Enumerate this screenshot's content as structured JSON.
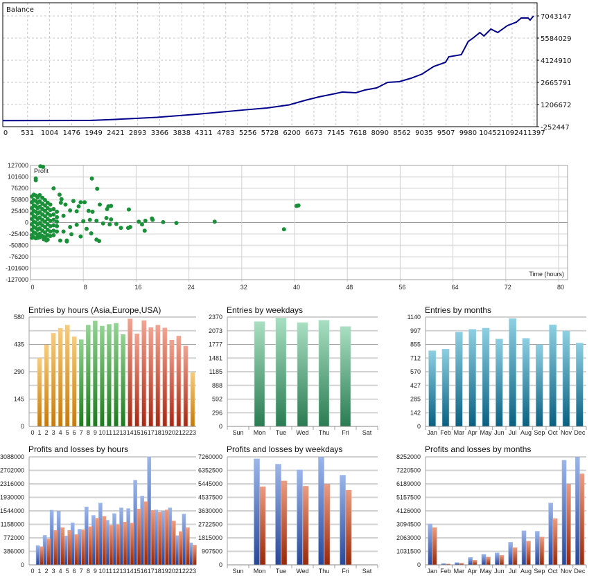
{
  "palette": {
    "line": "#00008b",
    "dot": "#1a9139",
    "asia": [
      "#f6cc80",
      "#c67a0a"
    ],
    "europe": [
      "#94d394",
      "#1d7a1d"
    ],
    "usa": [
      "#f2a492",
      "#a62812"
    ],
    "weekday": [
      "#a9dfc2",
      "#2a7b52"
    ],
    "month": [
      "#8ecfe2",
      "#0a5f80"
    ],
    "profit": [
      "#9cb6ea",
      "#27479a"
    ],
    "loss": [
      "#eb9c82",
      "#982808"
    ]
  },
  "chart_data": [
    {
      "id": "balance",
      "type": "line",
      "title": "Balance",
      "xlabel": "",
      "ylabel": "",
      "xlim": [
        0,
        11460
      ],
      "ylim": [
        -252447,
        7043147
      ],
      "x_ticks": [
        0,
        531,
        1004,
        1476,
        1949,
        2421,
        2893,
        3366,
        3838,
        4311,
        4783,
        5256,
        5728,
        6200,
        6673,
        7145,
        7618,
        8090,
        8562,
        9035,
        9507,
        9980,
        10452,
        10924,
        11397
      ],
      "y_ticks": [
        7043147,
        5584029,
        4124910,
        2665791,
        1206672,
        -252447
      ],
      "grid": true,
      "points": [
        [
          0,
          145000
        ],
        [
          1861,
          158000
        ],
        [
          2333,
          217000
        ],
        [
          3308,
          363000
        ],
        [
          4253,
          591000
        ],
        [
          5198,
          856000
        ],
        [
          5670,
          979000
        ],
        [
          6143,
          1184000
        ],
        [
          6482,
          1480000
        ],
        [
          6778,
          1708000
        ],
        [
          7073,
          1891000
        ],
        [
          7280,
          2027000
        ],
        [
          7575,
          1982000
        ],
        [
          7767,
          2164000
        ],
        [
          8018,
          2301000
        ],
        [
          8254,
          2666000
        ],
        [
          8505,
          2711000
        ],
        [
          8756,
          2939000
        ],
        [
          8992,
          3213000
        ],
        [
          9243,
          3714000
        ],
        [
          9495,
          3988000
        ],
        [
          9568,
          4353000
        ],
        [
          9834,
          4490000
        ],
        [
          9982,
          5356000
        ],
        [
          10085,
          5584000
        ],
        [
          10233,
          5949000
        ],
        [
          10321,
          5721000
        ],
        [
          10469,
          6177000
        ],
        [
          10617,
          5949000
        ],
        [
          10823,
          6405000
        ],
        [
          11015,
          6633000
        ],
        [
          11119,
          6906000
        ],
        [
          11266,
          6906000
        ],
        [
          11310,
          6769000
        ],
        [
          11384,
          7043000
        ]
      ]
    },
    {
      "id": "profit_vs_time",
      "type": "scatter",
      "title": "Profit",
      "xlabel": "Time (hours)",
      "xlim": [
        0,
        81.4
      ],
      "ylim": [
        -127000,
        127000
      ],
      "x_ticks": [
        0,
        8,
        16,
        24,
        32,
        40,
        48,
        56,
        64,
        72,
        80
      ],
      "y_ticks": [
        127000,
        101600,
        76200,
        50800,
        25400,
        0,
        -25400,
        -50800,
        -76200,
        -101600,
        -127000
      ],
      "grid": true,
      "points": [
        [
          0.2,
          58000
        ],
        [
          0.2,
          45000
        ],
        [
          0.2,
          32000
        ],
        [
          0.2,
          20000
        ],
        [
          0.2,
          8000
        ],
        [
          0.2,
          -4000
        ],
        [
          0.2,
          -16000
        ],
        [
          0.2,
          -28000
        ],
        [
          0.2,
          -34000
        ],
        [
          0.5,
          62000
        ],
        [
          0.5,
          50000
        ],
        [
          0.5,
          38000
        ],
        [
          0.5,
          26000
        ],
        [
          0.5,
          14000
        ],
        [
          0.5,
          2000
        ],
        [
          0.5,
          -10000
        ],
        [
          0.5,
          -22000
        ],
        [
          0.5,
          -33000
        ],
        [
          0.8,
          60000
        ],
        [
          0.8,
          48000
        ],
        [
          0.8,
          36000
        ],
        [
          0.8,
          24000
        ],
        [
          0.8,
          12000
        ],
        [
          0.8,
          0
        ],
        [
          0.8,
          -12000
        ],
        [
          0.8,
          -24000
        ],
        [
          0.8,
          -35000
        ],
        [
          1.1,
          56000
        ],
        [
          1.1,
          44000
        ],
        [
          1.1,
          32000
        ],
        [
          1.1,
          20000
        ],
        [
          1.1,
          8000
        ],
        [
          1.1,
          -4000
        ],
        [
          1.1,
          -16000
        ],
        [
          1.1,
          -28000
        ],
        [
          1.1,
          -34000
        ],
        [
          1.4,
          61000
        ],
        [
          1.4,
          47000
        ],
        [
          1.4,
          35000
        ],
        [
          1.4,
          23000
        ],
        [
          1.4,
          11000
        ],
        [
          1.4,
          -1000
        ],
        [
          1.4,
          -13000
        ],
        [
          1.4,
          -25000
        ],
        [
          1.4,
          -33000
        ],
        [
          1.8,
          55000
        ],
        [
          1.8,
          42000
        ],
        [
          1.8,
          30000
        ],
        [
          1.8,
          18000
        ],
        [
          1.8,
          6000
        ],
        [
          1.8,
          -6000
        ],
        [
          1.8,
          -18000
        ],
        [
          1.8,
          -30000
        ],
        [
          2.2,
          50000
        ],
        [
          2.2,
          38000
        ],
        [
          2.2,
          26000
        ],
        [
          2.2,
          14000
        ],
        [
          2.2,
          2000
        ],
        [
          2.2,
          -10000
        ],
        [
          2.2,
          -22000
        ],
        [
          2.2,
          -32000
        ],
        [
          2.6,
          44000
        ],
        [
          2.6,
          32000
        ],
        [
          2.6,
          20000
        ],
        [
          2.6,
          8000
        ],
        [
          2.6,
          -4000
        ],
        [
          2.6,
          -16000
        ],
        [
          2.6,
          -28000
        ],
        [
          2.6,
          -38000
        ],
        [
          3.0,
          40000
        ],
        [
          3.0,
          28000
        ],
        [
          3.0,
          16000
        ],
        [
          3.0,
          4000
        ],
        [
          3.0,
          -8000
        ],
        [
          3.0,
          -20000
        ],
        [
          3.0,
          -30000
        ],
        [
          3.5,
          30000
        ],
        [
          3.5,
          18000
        ],
        [
          3.5,
          6000
        ],
        [
          3.5,
          -6000
        ],
        [
          3.5,
          -18000
        ],
        [
          3.5,
          -28000
        ],
        [
          4.0,
          24000
        ],
        [
          4.0,
          12000
        ],
        [
          4.0,
          2000
        ],
        [
          4.0,
          -8000
        ],
        [
          4.0,
          -20000
        ],
        [
          1.5,
          125000
        ],
        [
          1.9,
          124000
        ],
        [
          0.8,
          98000
        ],
        [
          0.8,
          94000
        ],
        [
          9.3,
          98000
        ],
        [
          10.1,
          75000
        ],
        [
          3.5,
          76000
        ],
        [
          4.4,
          62000
        ],
        [
          4.7,
          52000
        ],
        [
          5.3,
          40000
        ],
        [
          4.6,
          44000
        ],
        [
          6.5,
          48000
        ],
        [
          7.6,
          45000
        ],
        [
          8.2,
          45000
        ],
        [
          6.0,
          27000
        ],
        [
          7.3,
          36000
        ],
        [
          7.0,
          25000
        ],
        [
          8.8,
          26000
        ],
        [
          9.4,
          24000
        ],
        [
          10.5,
          40000
        ],
        [
          11.8,
          36000
        ],
        [
          12.2,
          37000
        ],
        [
          11.6,
          30000
        ],
        [
          14.9,
          29000
        ],
        [
          11.5,
          10000
        ],
        [
          12.2,
          7000
        ],
        [
          16.4,
          2000
        ],
        [
          17.4,
          4000
        ],
        [
          18.4,
          9000
        ],
        [
          18.5,
          6000
        ],
        [
          20.1,
          1000
        ],
        [
          22.1,
          -1000
        ],
        [
          27.9,
          2000
        ],
        [
          38.4,
          -15000
        ],
        [
          40.3,
          37000
        ],
        [
          40.6,
          38000
        ],
        [
          16.9,
          -4000
        ],
        [
          17.3,
          -18000
        ],
        [
          13.7,
          -12000
        ],
        [
          14.8,
          -12000
        ],
        [
          15.1,
          -10000
        ],
        [
          10.0,
          -38000
        ],
        [
          10.4,
          -41000
        ],
        [
          9.2,
          -24000
        ],
        [
          8.5,
          -14000
        ],
        [
          7.6,
          -31000
        ],
        [
          5.5,
          -40000
        ],
        [
          5.5,
          -42000
        ],
        [
          4.5,
          -40000
        ],
        [
          2.4,
          -40000
        ],
        [
          2.0,
          -37000
        ],
        [
          6.2,
          -26000
        ],
        [
          13.0,
          -3000
        ],
        [
          12.0,
          -4000
        ],
        [
          11.0,
          -2000
        ],
        [
          10.0,
          4000
        ],
        [
          9.0,
          6000
        ],
        [
          8.0,
          3000
        ],
        [
          7.0,
          -5000
        ],
        [
          6.0,
          -10000
        ],
        [
          5.0,
          -20000
        ],
        [
          5.0,
          15000
        ]
      ]
    },
    {
      "id": "entries_hours",
      "type": "bar",
      "title": "Entries by hours (Asia,Europe,USA)",
      "categories": [
        "0",
        "1",
        "2",
        "3",
        "4",
        "5",
        "6",
        "7",
        "8",
        "9",
        "10",
        "11",
        "12",
        "13",
        "14",
        "15",
        "16",
        "17",
        "18",
        "19",
        "20",
        "21",
        "22",
        "23"
      ],
      "ylim": [
        0,
        580
      ],
      "y_ticks": [
        0,
        145,
        290,
        435,
        580
      ],
      "series": [
        {
          "name": "Entries",
          "values": [
            0,
            362,
            432,
            494,
            520,
            537,
            475,
            460,
            537,
            559,
            532,
            541,
            547,
            487,
            570,
            491,
            561,
            524,
            537,
            522,
            458,
            479,
            426,
            285
          ],
          "colors": [
            "asia",
            "asia",
            "asia",
            "asia",
            "asia",
            "asia",
            "asia",
            "europe",
            "europe",
            "europe",
            "europe",
            "europe",
            "europe",
            "europe",
            "usa",
            "usa",
            "usa",
            "usa",
            "usa",
            "usa",
            "usa",
            "usa",
            "usa",
            "asia"
          ]
        }
      ]
    },
    {
      "id": "entries_weekdays",
      "type": "bar",
      "title": "Entries by weekdays",
      "categories": [
        "Sun",
        "Mon",
        "Tue",
        "Wed",
        "Thu",
        "Fri",
        "Sat"
      ],
      "ylim": [
        0,
        2370
      ],
      "y_ticks": [
        0,
        296,
        592,
        888,
        1185,
        1481,
        1777,
        2073,
        2370
      ],
      "series": [
        {
          "name": "Entries",
          "values": [
            0,
            2269,
            2350,
            2249,
            2299,
            2163,
            0
          ],
          "color": "weekday"
        }
      ]
    },
    {
      "id": "entries_months",
      "type": "bar",
      "title": "Entries by months",
      "categories": [
        "Jan",
        "Feb",
        "Mar",
        "Apr",
        "May",
        "Jun",
        "Jul",
        "Aug",
        "Sep",
        "Oct",
        "Nov",
        "Dec"
      ],
      "ylim": [
        0,
        1140
      ],
      "y_ticks": [
        0,
        142,
        285,
        427,
        570,
        712,
        855,
        997,
        1140
      ],
      "series": [
        {
          "name": "Entries",
          "values": [
            788,
            805,
            982,
            1011,
            1024,
            910,
            1123,
            917,
            851,
            1058,
            994,
            868
          ],
          "color": "month"
        }
      ]
    },
    {
      "id": "pl_hours",
      "type": "bar",
      "title": "Profits and losses by hours",
      "categories": [
        "0",
        "1",
        "2",
        "3",
        "4",
        "5",
        "6",
        "7",
        "8",
        "9",
        "10",
        "11",
        "12",
        "13",
        "14",
        "15",
        "16",
        "17",
        "18",
        "19",
        "20",
        "21",
        "22",
        "23"
      ],
      "ylim": [
        0,
        3088000
      ],
      "y_ticks": [
        0,
        386000,
        772000,
        1158000,
        1544000,
        1930000,
        2316000,
        2702000,
        3088000
      ],
      "series": [
        {
          "name": "Profits",
          "color": "profit",
          "values": [
            0,
            551900,
            841000,
            1564000,
            1531000,
            828000,
            1202000,
            1018000,
            1656000,
            1413000,
            1767000,
            1275000,
            1465000,
            1629000,
            1610000,
            2418000,
            1965000,
            3088000,
            1570000,
            1531000,
            1629000,
            834000,
            1452000,
            631000
          ]
        },
        {
          "name": "Losses",
          "color": "loss",
          "values": [
            0,
            519000,
            742000,
            986000,
            1064000,
            986000,
            867000,
            1005000,
            1091000,
            1334000,
            1386000,
            1130000,
            1150000,
            1222000,
            1196000,
            1597000,
            1807000,
            1557000,
            1505000,
            1570000,
            1255000,
            953000,
            1064000,
            565000
          ]
        }
      ]
    },
    {
      "id": "pl_weekdays",
      "type": "bar",
      "title": "Profits and losses by weekdays",
      "categories": [
        "Sun",
        "Mon",
        "Tue",
        "Wed",
        "Thu",
        "Fri",
        "Sat"
      ],
      "ylim": [
        0,
        7260000
      ],
      "y_ticks": [
        0,
        907500,
        1815000,
        2722500,
        3630000,
        4537500,
        5445000,
        6352500,
        7260000
      ],
      "series": [
        {
          "name": "Profits",
          "color": "profit",
          "values": [
            0,
            7121000,
            6766000,
            6380000,
            7229000,
            6024000,
            0
          ]
        },
        {
          "name": "Losses",
          "color": "loss",
          "values": [
            0,
            5252000,
            5638000,
            5283000,
            5406000,
            5020000,
            0
          ]
        }
      ]
    },
    {
      "id": "pl_months",
      "type": "bar",
      "title": "Profits and losses by months",
      "categories": [
        "Jan",
        "Feb",
        "Mar",
        "Apr",
        "May",
        "Jun",
        "Jul",
        "Aug",
        "Sep",
        "Oct",
        "Nov",
        "Dec"
      ],
      "ylim": [
        0,
        8252000
      ],
      "y_ticks": [
        0,
        1031500,
        2063000,
        3094500,
        4126000,
        5157500,
        6189000,
        7220500,
        8252000
      ],
      "series": [
        {
          "name": "Profits",
          "color": "profit",
          "values": [
            3125000,
            105000,
            176000,
            562000,
            808000,
            913000,
            1721000,
            2599000,
            2563000,
            4723000,
            7989000,
            8217000
          ]
        },
        {
          "name": "Losses",
          "color": "loss",
          "values": [
            2844000,
            70000,
            123000,
            351000,
            597000,
            720000,
            1317000,
            1808000,
            2124000,
            3529000,
            6145000,
            6953000
          ]
        }
      ]
    }
  ]
}
